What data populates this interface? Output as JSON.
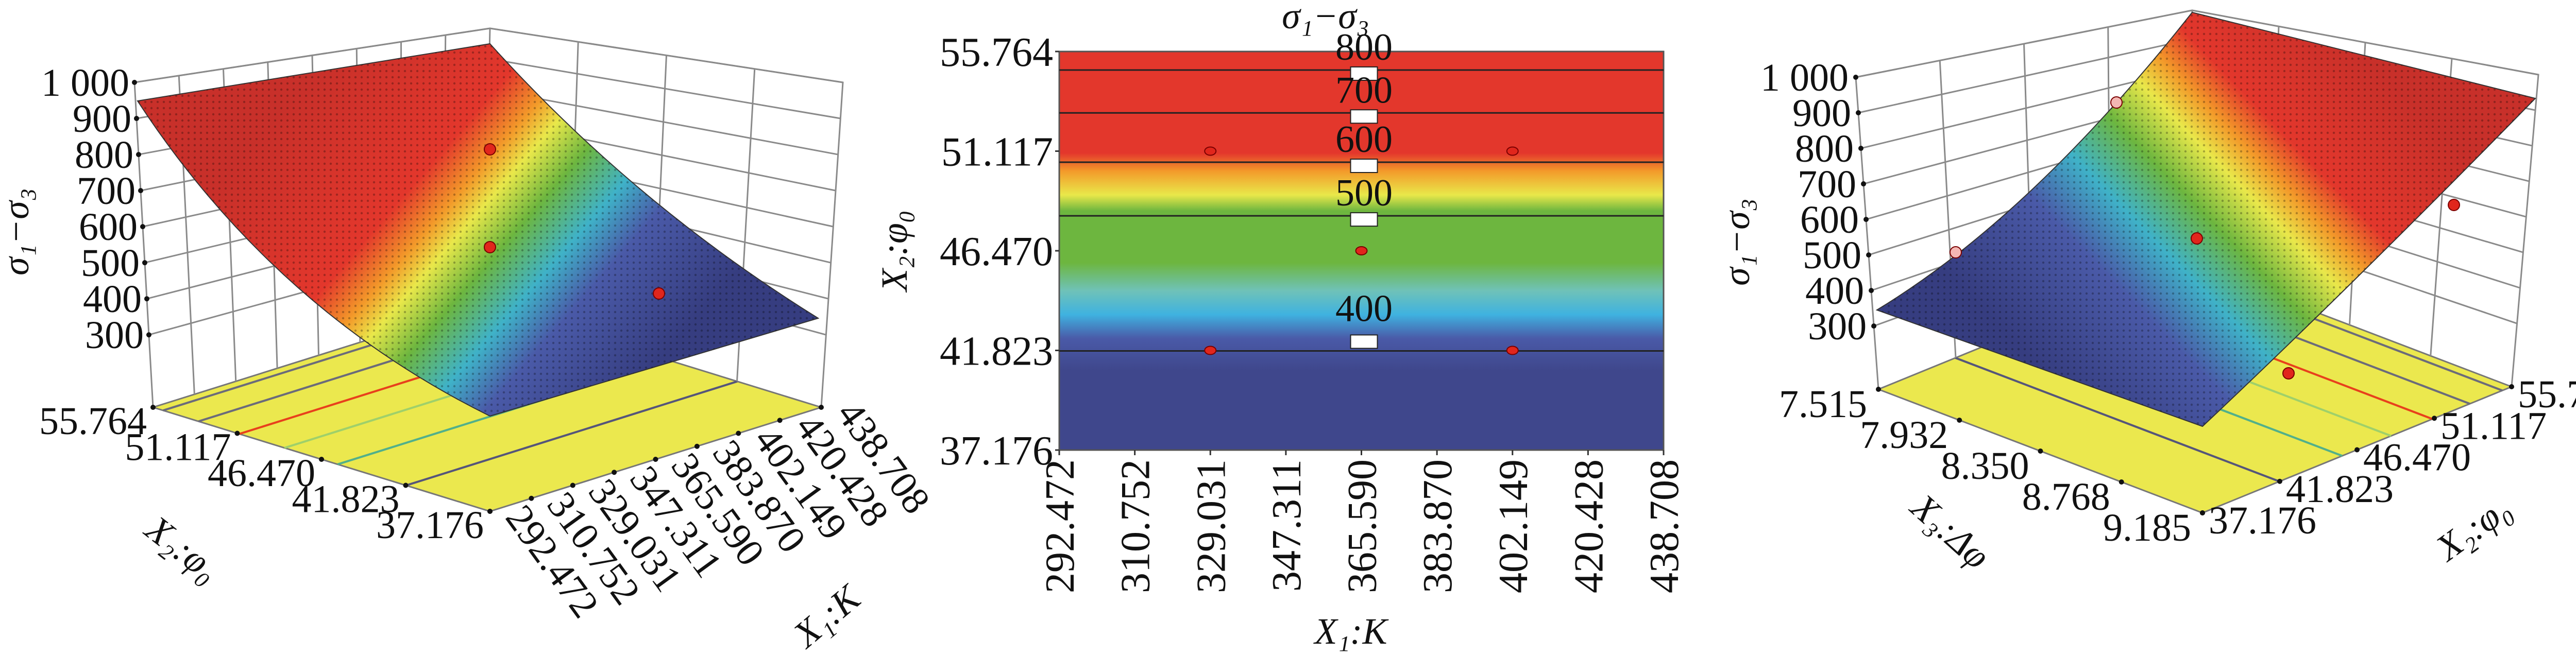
{
  "chart_data": [
    {
      "type": "surface3d",
      "panel": "left",
      "zlabel": "σ₁−σ₃",
      "xlabel": "X₁:K",
      "ylabel": "X₂:φ₀",
      "z_ticks": [
        "1 000",
        "900",
        "800",
        "700",
        "600",
        "500",
        "400",
        "300"
      ],
      "z_tick_values": [
        1000,
        900,
        800,
        700,
        600,
        500,
        400,
        300
      ],
      "x_ticks": [
        "292.472",
        "310.752",
        "329.031",
        "347.311",
        "365.590",
        "383.870",
        "402.149",
        "420.428",
        "438.708"
      ],
      "y_ticks": [
        "55.764",
        "51.117",
        "46.470",
        "41.823",
        "37.176"
      ],
      "xlim": [
        292.472,
        438.708
      ],
      "ylim": [
        37.176,
        55.764
      ],
      "zlim": [
        300,
        1000
      ],
      "surface_corners": {
        "x_min_y_max": 910,
        "x_max_y_max": 960,
        "x_min_y_min": 250,
        "x_max_y_min": 320
      },
      "design_points_z": [
        800,
        500,
        400
      ],
      "floor_contours": [
        800,
        700,
        600,
        500,
        400
      ]
    },
    {
      "type": "contour",
      "panel": "center",
      "title": "σ₁−σ₃",
      "xlabel": "X₁:K",
      "ylabel": "X₂:φ₀",
      "x_ticks": [
        "292.472",
        "310.752",
        "329.031",
        "347.311",
        "365.590",
        "383.870",
        "402.149",
        "420.428",
        "438.708"
      ],
      "y_ticks": [
        "55.764",
        "51.117",
        "46.470",
        "41.823",
        "37.176"
      ],
      "xlim": [
        292.472,
        438.708
      ],
      "ylim": [
        37.176,
        55.764
      ],
      "contour_levels": [
        {
          "label": "800",
          "y": 54.9
        },
        {
          "label": "700",
          "y": 52.9
        },
        {
          "label": "600",
          "y": 50.6
        },
        {
          "label": "500",
          "y": 48.1
        },
        {
          "label": "400",
          "y": 41.8
        }
      ],
      "design_points": [
        {
          "x": 329.031,
          "y": 51.117
        },
        {
          "x": 402.149,
          "y": 51.117
        },
        {
          "x": 365.59,
          "y": 46.47
        },
        {
          "x": 329.031,
          "y": 41.823
        },
        {
          "x": 402.149,
          "y": 41.823
        }
      ]
    },
    {
      "type": "surface3d",
      "panel": "right",
      "zlabel": "σ₁−σ₃",
      "xlabel": "X₃:Δφ",
      "ylabel": "X₂:φ₀",
      "z_ticks": [
        "1 000",
        "900",
        "800",
        "700",
        "600",
        "500",
        "400",
        "300"
      ],
      "z_tick_values": [
        1000,
        900,
        800,
        700,
        600,
        500,
        400,
        300
      ],
      "x_ticks": [
        "7.515",
        "7.932",
        "8.350",
        "8.768",
        "9.185"
      ],
      "y_ticks": [
        "37.176",
        "41.823",
        "46.470",
        "51.117",
        "55.764"
      ],
      "xlim": [
        7.515,
        9.185
      ],
      "ylim": [
        37.176,
        55.764
      ],
      "zlim": [
        300,
        1000
      ],
      "design_points_z": [
        500,
        600,
        400
      ],
      "floor_contours": [
        400,
        500,
        600,
        700,
        800
      ]
    }
  ],
  "colors": {
    "red": "#e3372c",
    "orange": "#f39a2a",
    "yellow": "#e9e84a",
    "green": "#6db63f",
    "teal": "#6fc2b8",
    "cyan": "#3fb2e0",
    "blue": "#4a5aa8",
    "dark_blue": "#3f478c",
    "floor": "#ebe84e",
    "point": "#e1261c"
  }
}
